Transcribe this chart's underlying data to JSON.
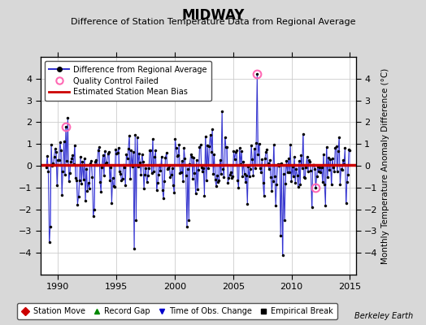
{
  "title": "MIDWAY",
  "subtitle": "Difference of Station Temperature Data from Regional Average",
  "ylabel_right": "Monthly Temperature Anomaly Difference (°C)",
  "xlim": [
    1988.5,
    2015.5
  ],
  "ylim": [
    -5,
    5
  ],
  "yticks": [
    -4,
    -3,
    -2,
    -1,
    0,
    1,
    2,
    3,
    4
  ],
  "xticks": [
    1990,
    1995,
    2000,
    2005,
    2010,
    2015
  ],
  "mean_bias": 0.05,
  "line_color": "#3333cc",
  "stem_color": "#aaaaff",
  "mean_bias_color": "#cc0000",
  "background_color": "#d8d8d8",
  "plot_bg_color": "#ffffff",
  "watermark": "Berkeley Earth",
  "seed": 12345,
  "n_years": 26,
  "start_year": 1989.0
}
